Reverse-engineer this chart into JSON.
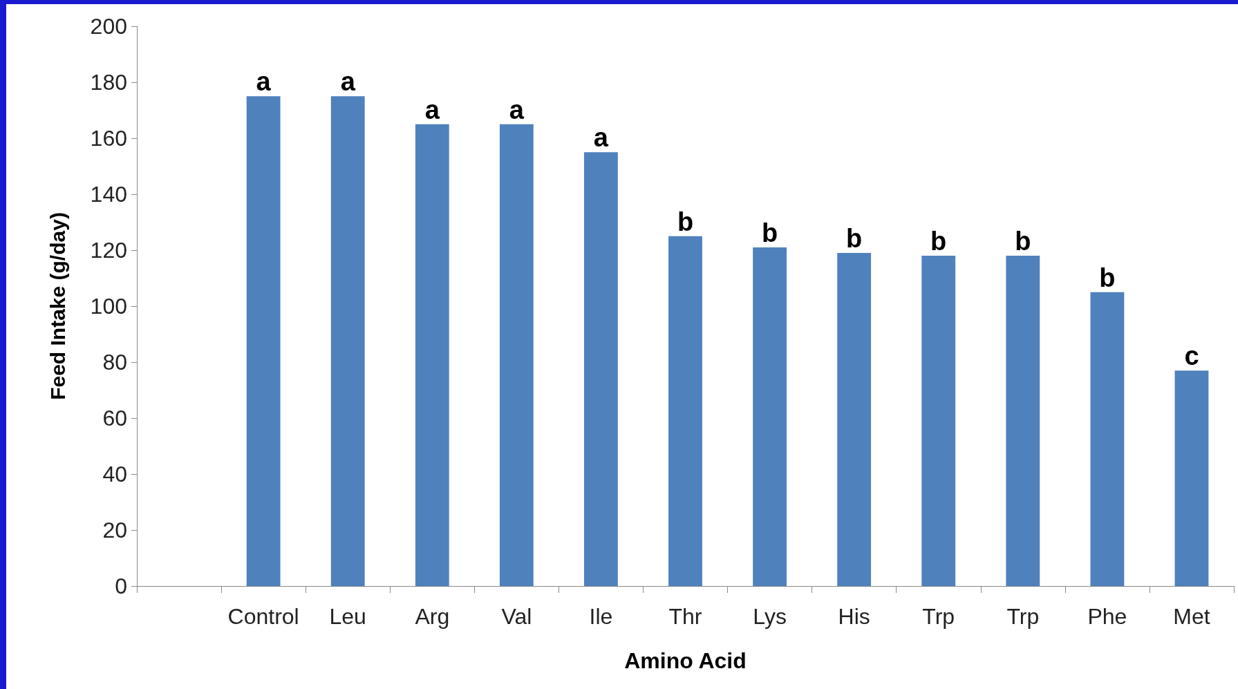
{
  "chart_data": {
    "type": "bar",
    "xlabel": "Amino Acid",
    "ylabel": "Feed Intake (g/day)",
    "categories": [
      null,
      "Control",
      "Leu",
      "Arg",
      "Val",
      "Ile",
      "Thr",
      "Lys",
      "His",
      "Trp",
      "Trp",
      "Phe",
      "Met"
    ],
    "values": [
      null,
      175,
      175,
      165,
      165,
      155,
      125,
      121,
      119,
      118,
      118,
      105,
      77
    ],
    "value_labels": [
      null,
      "a",
      "a",
      "a",
      "a",
      "a",
      "b",
      "b",
      "b",
      "b",
      "b",
      "b",
      "c"
    ],
    "color": "#4f81bd",
    "ylim": [
      0,
      200
    ],
    "yticks": [
      0,
      20,
      40,
      60,
      80,
      100,
      120,
      140,
      160,
      180,
      200
    ],
    "grid": false
  }
}
